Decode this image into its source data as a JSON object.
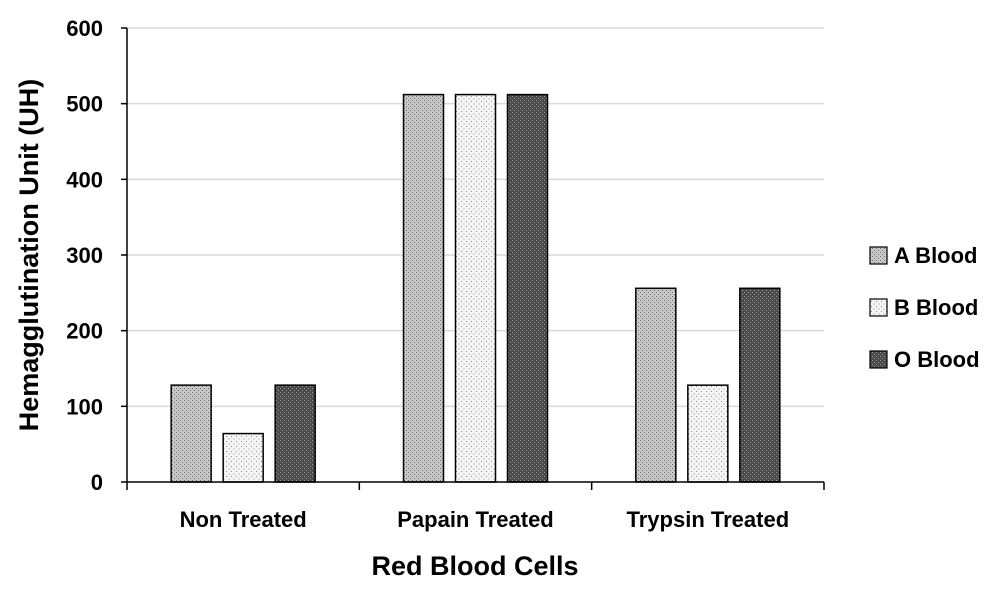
{
  "chart_data": {
    "type": "bar",
    "title": "",
    "xlabel": "Red Blood Cells",
    "ylabel": "Hemagglutination Unit (UH)",
    "categories": [
      "Non Treated",
      "Papain Treated",
      "Trypsin Treated"
    ],
    "series": [
      {
        "name": "A Blood",
        "values": [
          128,
          512,
          256
        ],
        "pattern": "pattern-a"
      },
      {
        "name": "B Blood",
        "values": [
          64,
          512,
          128
        ],
        "pattern": "pattern-b"
      },
      {
        "name": "O Blood",
        "values": [
          128,
          512,
          256
        ],
        "pattern": "pattern-o"
      }
    ],
    "ylim": [
      0,
      600
    ],
    "yticks": [
      0,
      100,
      200,
      300,
      400,
      500,
      600
    ],
    "grid": true,
    "legend_position": "right",
    "colors": {
      "grid": "#d9d9d9",
      "axis": "#000000",
      "bar_outline": "#000000"
    }
  }
}
